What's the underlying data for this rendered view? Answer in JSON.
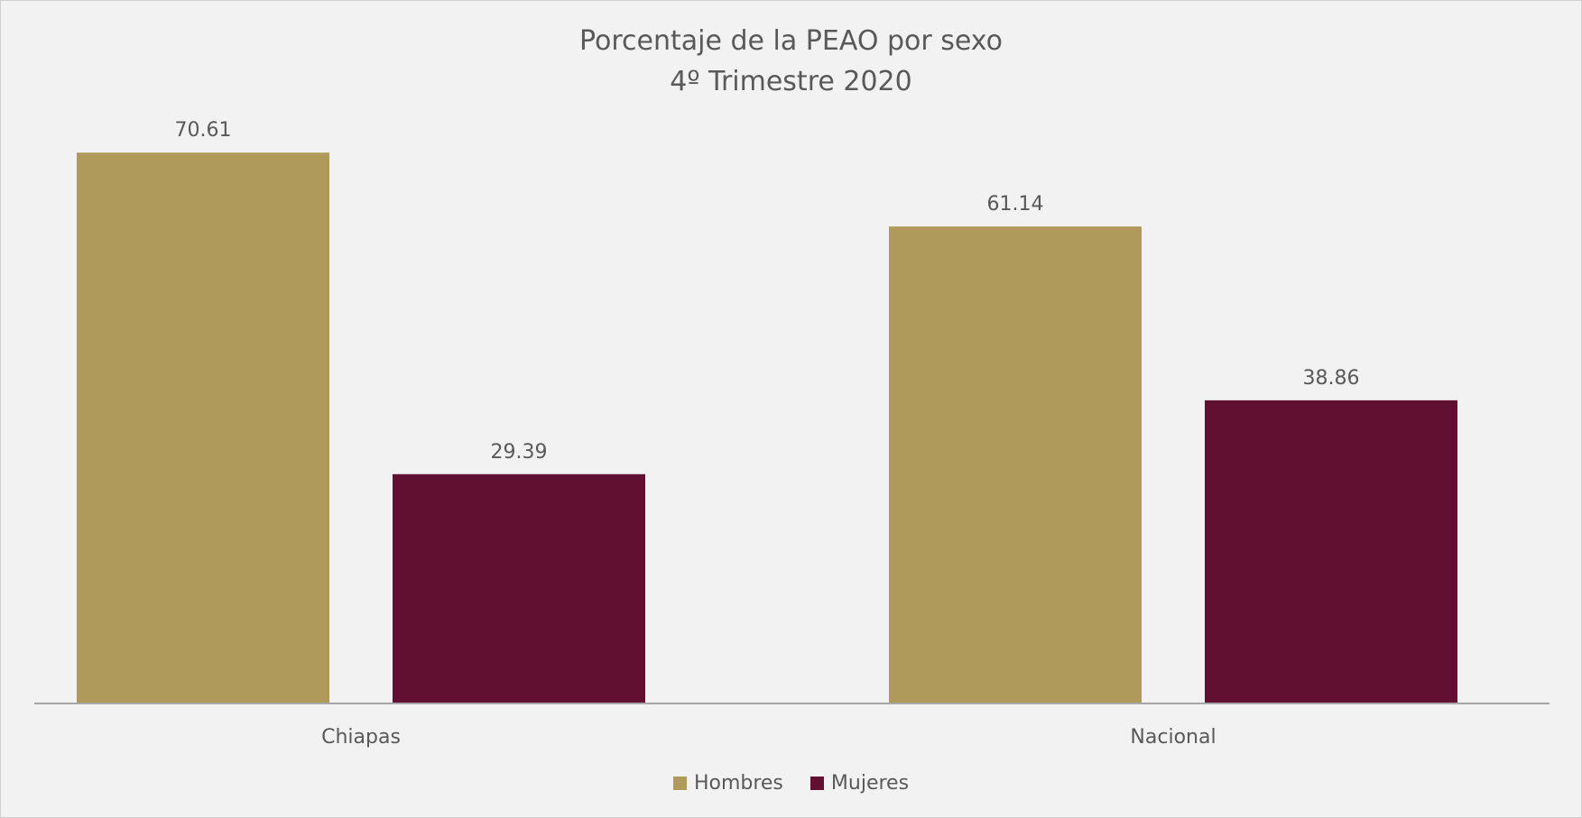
{
  "chart_data": {
    "type": "bar",
    "title_lines": [
      "Porcentaje de la PEAO por sexo",
      "4º Trimestre 2020"
    ],
    "categories": [
      "Chiapas",
      "Nacional"
    ],
    "series": [
      {
        "name": "Hombres",
        "values": [
          70.61,
          61.14
        ],
        "color": "#b09a5b"
      },
      {
        "name": "Mujeres",
        "values": [
          29.39,
          38.86
        ],
        "color": "#611031"
      }
    ],
    "data_labels": [
      [
        "70.61",
        "61.14"
      ],
      [
        "29.39",
        "38.86"
      ]
    ],
    "xlabel": "",
    "ylabel": "",
    "ylim": [
      0,
      80
    ],
    "grid": false,
    "legend_position": "bottom"
  }
}
